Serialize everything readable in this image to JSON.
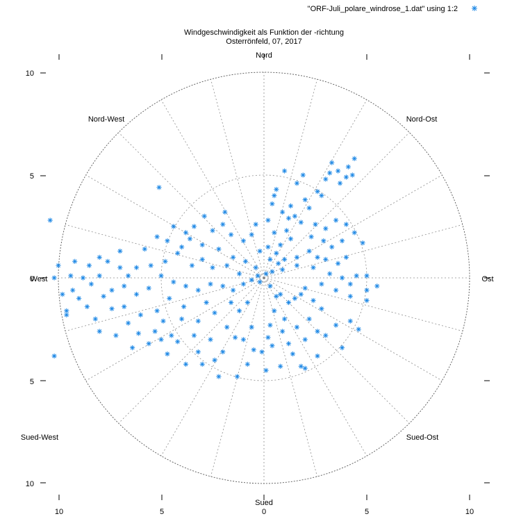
{
  "chart_data": {
    "type": "scatter",
    "polar": true,
    "title": "Windgeschwindigkeit als Funktion der -richtung",
    "subtitle": "Osterrönfeld, 07, 2017",
    "legend": {
      "label": "\"ORF-Juli_polare_windrose_1.dat\" using 1:2",
      "position": "top-right"
    },
    "colors": {
      "points": "#1e88e5",
      "grid": "#8c8c8c"
    },
    "marker": "asterisk",
    "r_max": 10,
    "rings": [
      5,
      10
    ],
    "spokes_every_deg": 15,
    "direction_labels": {
      "north": "Nord",
      "northeast": "Nord-Ost",
      "east": "Ost",
      "southeast": "Sued-Ost",
      "south": "Sued",
      "southwest": "Sued-West",
      "west": "West",
      "northwest": "Nord-West"
    },
    "x_ticks": [
      "10",
      "5",
      "0",
      "5",
      "10"
    ],
    "y_ticks": [
      "10",
      "5",
      "0",
      "5",
      "10"
    ],
    "point_groups_note_free": true,
    "series": [
      {
        "points": [
          [
            1.0,
            5.2
          ],
          [
            2.2,
            3.4
          ],
          [
            0.5,
            4.0
          ],
          [
            1.6,
            4.6
          ],
          [
            2.8,
            4.0
          ],
          [
            3.3,
            5.6
          ],
          [
            3.7,
            4.6
          ],
          [
            4.1,
            5.4
          ],
          [
            4.4,
            5.8
          ],
          [
            3.6,
            5.2
          ],
          [
            3.2,
            5.1
          ],
          [
            4.0,
            4.9
          ],
          [
            4.3,
            5.0
          ],
          [
            1.9,
            5.0
          ],
          [
            0.9,
            3.2
          ],
          [
            1.2,
            2.9
          ],
          [
            1.8,
            2.7
          ],
          [
            2.5,
            2.6
          ],
          [
            3.0,
            2.4
          ],
          [
            3.5,
            2.8
          ],
          [
            4.0,
            2.6
          ],
          [
            4.4,
            2.2
          ],
          [
            2.9,
            1.8
          ],
          [
            2.2,
            1.3
          ],
          [
            1.6,
            1.0
          ],
          [
            0.7,
            0.7
          ],
          [
            0.3,
            0.9
          ],
          [
            0.2,
            1.5
          ],
          [
            0.5,
            2.2
          ],
          [
            0.8,
            1.6
          ],
          [
            1.3,
            1.9
          ],
          [
            1.0,
            0.9
          ],
          [
            0.4,
            0.3
          ],
          [
            0.9,
            0.4
          ],
          [
            1.6,
            0.6
          ],
          [
            2.4,
            0.5
          ],
          [
            3.0,
            0.9
          ],
          [
            3.6,
            0.7
          ],
          [
            4.0,
            1.0
          ],
          [
            4.8,
            1.7
          ],
          [
            5.0,
            0.1
          ],
          [
            4.5,
            0.1
          ],
          [
            5.0,
            -0.6
          ],
          [
            4.2,
            -0.9
          ],
          [
            3.5,
            -0.6
          ],
          [
            2.8,
            -0.3
          ],
          [
            2.0,
            -0.5
          ],
          [
            1.5,
            -1.0
          ],
          [
            0.8,
            -0.8
          ],
          [
            0.5,
            -1.6
          ],
          [
            0.3,
            -2.3
          ],
          [
            1.0,
            -2.0
          ],
          [
            1.6,
            -2.4
          ],
          [
            2.2,
            -2.0
          ],
          [
            2.8,
            -1.5
          ],
          [
            3.5,
            -2.3
          ],
          [
            4.2,
            -2.1
          ],
          [
            4.6,
            -2.5
          ],
          [
            5.0,
            -1.1
          ],
          [
            5.5,
            -0.4
          ],
          [
            2.0,
            -3.0
          ],
          [
            1.2,
            -3.2
          ],
          [
            0.4,
            -3.3
          ],
          [
            -0.1,
            -3.6
          ],
          [
            -0.5,
            -3.5
          ],
          [
            -1.0,
            -3.0
          ],
          [
            -0.8,
            -4.2
          ],
          [
            0.1,
            -4.5
          ],
          [
            0.8,
            -4.3
          ],
          [
            1.8,
            -4.3
          ],
          [
            2.6,
            -3.8
          ],
          [
            2.0,
            -4.4
          ],
          [
            -1.3,
            -4.8
          ],
          [
            -2.2,
            -4.8
          ],
          [
            -3.0,
            -4.2
          ],
          [
            -3.2,
            -3.6
          ],
          [
            -3.8,
            -4.2
          ],
          [
            -2.6,
            -3.0
          ],
          [
            -1.8,
            -2.4
          ],
          [
            -1.2,
            -1.6
          ],
          [
            -2.4,
            -1.7
          ],
          [
            -3.2,
            -2.1
          ],
          [
            -4.0,
            -2.0
          ],
          [
            -4.5,
            -2.8
          ],
          [
            -5.0,
            -3.0
          ],
          [
            -4.7,
            -3.7
          ],
          [
            -5.6,
            -3.2
          ],
          [
            -4.6,
            -1.0
          ],
          [
            -5.2,
            -1.6
          ],
          [
            -6.0,
            -1.8
          ],
          [
            -6.6,
            -2.2
          ],
          [
            -7.4,
            -1.5
          ],
          [
            -8.2,
            -2.0
          ],
          [
            -8.0,
            -2.6
          ],
          [
            -7.2,
            -2.8
          ],
          [
            -6.4,
            -3.4
          ],
          [
            -8.6,
            -1.4
          ],
          [
            -9.0,
            -1.0
          ],
          [
            -9.3,
            -0.6
          ],
          [
            -9.6,
            -1.6
          ],
          [
            -9.8,
            -0.8
          ],
          [
            -10.2,
            0.0
          ],
          [
            -8.8,
            0.0
          ],
          [
            -8.0,
            0.1
          ],
          [
            -7.4,
            -0.6
          ],
          [
            -6.8,
            -0.4
          ],
          [
            -6.2,
            -0.8
          ],
          [
            -5.6,
            -0.5
          ],
          [
            -5.0,
            0.1
          ],
          [
            -4.4,
            -0.2
          ],
          [
            -3.8,
            -0.4
          ],
          [
            -3.2,
            -0.6
          ],
          [
            -2.6,
            -0.3
          ],
          [
            -2.0,
            -0.4
          ],
          [
            -1.5,
            -0.6
          ],
          [
            -1.0,
            -0.3
          ],
          [
            -0.6,
            -0.1
          ],
          [
            -0.2,
            -0.2
          ],
          [
            -1.2,
            0.2
          ],
          [
            -1.8,
            0.6
          ],
          [
            -2.5,
            0.5
          ],
          [
            -3.0,
            0.9
          ],
          [
            -3.5,
            0.6
          ],
          [
            -4.2,
            1.2
          ],
          [
            -4.8,
            0.8
          ],
          [
            -5.5,
            0.6
          ],
          [
            -6.2,
            0.5
          ],
          [
            -7.0,
            0.5
          ],
          [
            -7.6,
            0.8
          ],
          [
            -9.2,
            0.8
          ],
          [
            -10.0,
            0.6
          ],
          [
            -8.5,
            0.6
          ],
          [
            -4.7,
            1.8
          ],
          [
            -4.0,
            1.5
          ],
          [
            -3.6,
            1.9
          ],
          [
            -3.0,
            1.6
          ],
          [
            -2.2,
            1.4
          ],
          [
            -1.5,
            1.0
          ],
          [
            -0.9,
            0.8
          ],
          [
            -0.4,
            0.5
          ],
          [
            -1.6,
            2.1
          ],
          [
            -2.5,
            2.3
          ],
          [
            -3.8,
            2.2
          ],
          [
            -5.2,
            2.0
          ],
          [
            -2.9,
            3.0
          ],
          [
            -1.9,
            3.2
          ],
          [
            -0.6,
            2.1
          ],
          [
            -0.2,
            1.3
          ],
          [
            -10.4,
            2.8
          ],
          [
            -5.1,
            4.4
          ],
          [
            -10.2,
            -3.8
          ],
          [
            -9.6,
            -1.8
          ],
          [
            0.6,
            -0.9
          ],
          [
            1.2,
            -1.2
          ],
          [
            1.8,
            -0.8
          ],
          [
            0.3,
            -0.4
          ],
          [
            0.1,
            0.2
          ],
          [
            -0.3,
            0.1
          ],
          [
            2.6,
            1.0
          ],
          [
            3.3,
            1.5
          ],
          [
            3.8,
            1.8
          ],
          [
            0.6,
            1.2
          ],
          [
            1.1,
            2.3
          ],
          [
            1.5,
            3.0
          ],
          [
            2.0,
            3.8
          ],
          [
            2.6,
            4.2
          ],
          [
            3.0,
            4.8
          ],
          [
            0.2,
            2.8
          ],
          [
            -0.4,
            2.6
          ],
          [
            0.4,
            3.6
          ],
          [
            0.6,
            4.3
          ],
          [
            1.3,
            3.5
          ],
          [
            2.3,
            2.0
          ],
          [
            3.2,
            0.2
          ],
          [
            3.8,
            0.0
          ],
          [
            4.2,
            -0.3
          ],
          [
            2.4,
            -1.1
          ],
          [
            3.0,
            -2.8
          ],
          [
            3.8,
            -3.4
          ],
          [
            2.6,
            -2.6
          ],
          [
            1.4,
            -3.7
          ],
          [
            0.9,
            -2.6
          ],
          [
            0.2,
            -2.9
          ],
          [
            -0.6,
            -2.4
          ],
          [
            -1.4,
            -2.9
          ],
          [
            -2.0,
            -3.6
          ],
          [
            -2.4,
            -4.0
          ],
          [
            -3.4,
            -2.8
          ],
          [
            -4.2,
            -3.1
          ],
          [
            -5.3,
            -2.6
          ],
          [
            -6.1,
            -2.7
          ],
          [
            -6.8,
            -1.4
          ],
          [
            -7.8,
            -0.9
          ],
          [
            -8.4,
            -0.3
          ],
          [
            -9.4,
            0.1
          ],
          [
            -6.6,
            0.1
          ],
          [
            -5.8,
            1.4
          ],
          [
            -7.0,
            1.3
          ],
          [
            -8.0,
            1.0
          ],
          [
            -4.4,
            2.5
          ],
          [
            -3.4,
            2.5
          ],
          [
            -2.0,
            2.6
          ],
          [
            -1.0,
            1.8
          ],
          [
            -0.8,
            -1.2
          ],
          [
            -1.6,
            -1.2
          ],
          [
            -2.8,
            -1.2
          ],
          [
            -3.9,
            -1.4
          ],
          [
            -4.9,
            -2.1
          ]
        ]
      }
    ]
  }
}
